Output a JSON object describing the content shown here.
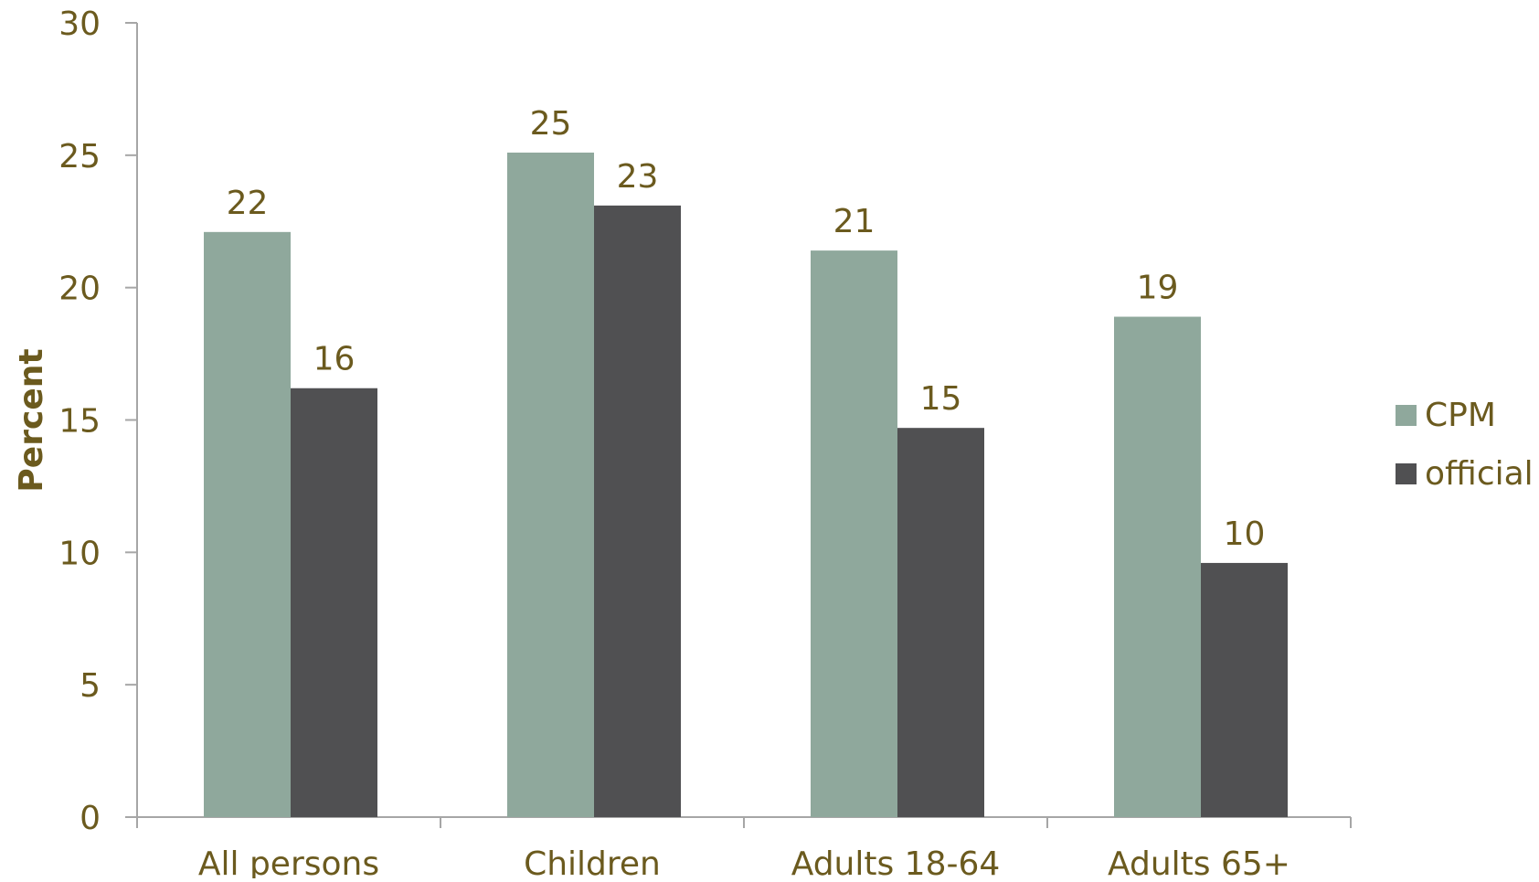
{
  "chart_data": {
    "type": "bar",
    "title": "",
    "xlabel": "",
    "ylabel": "Percent",
    "ylim": [
      0,
      30
    ],
    "yticks": [
      "0",
      "5",
      "10",
      "15",
      "20",
      "25",
      "30"
    ],
    "categories": [
      "All persons",
      "Children",
      "Adults 18-64",
      "Adults 65+"
    ],
    "series": [
      {
        "name": "CPM",
        "values": [
          22.1,
          25.1,
          21.4,
          18.9
        ],
        "labels": [
          "22",
          "25",
          "21",
          "19"
        ],
        "color": "#8fa89c"
      },
      {
        "name": "official",
        "values": [
          16.2,
          23.1,
          14.7,
          9.6
        ],
        "labels": [
          "16",
          "23",
          "15",
          "10"
        ],
        "color": "#505052"
      }
    ],
    "grid": false,
    "legend_position": "right",
    "text_color": "#6b5a1e",
    "axis_color": "#a6a6a6"
  }
}
